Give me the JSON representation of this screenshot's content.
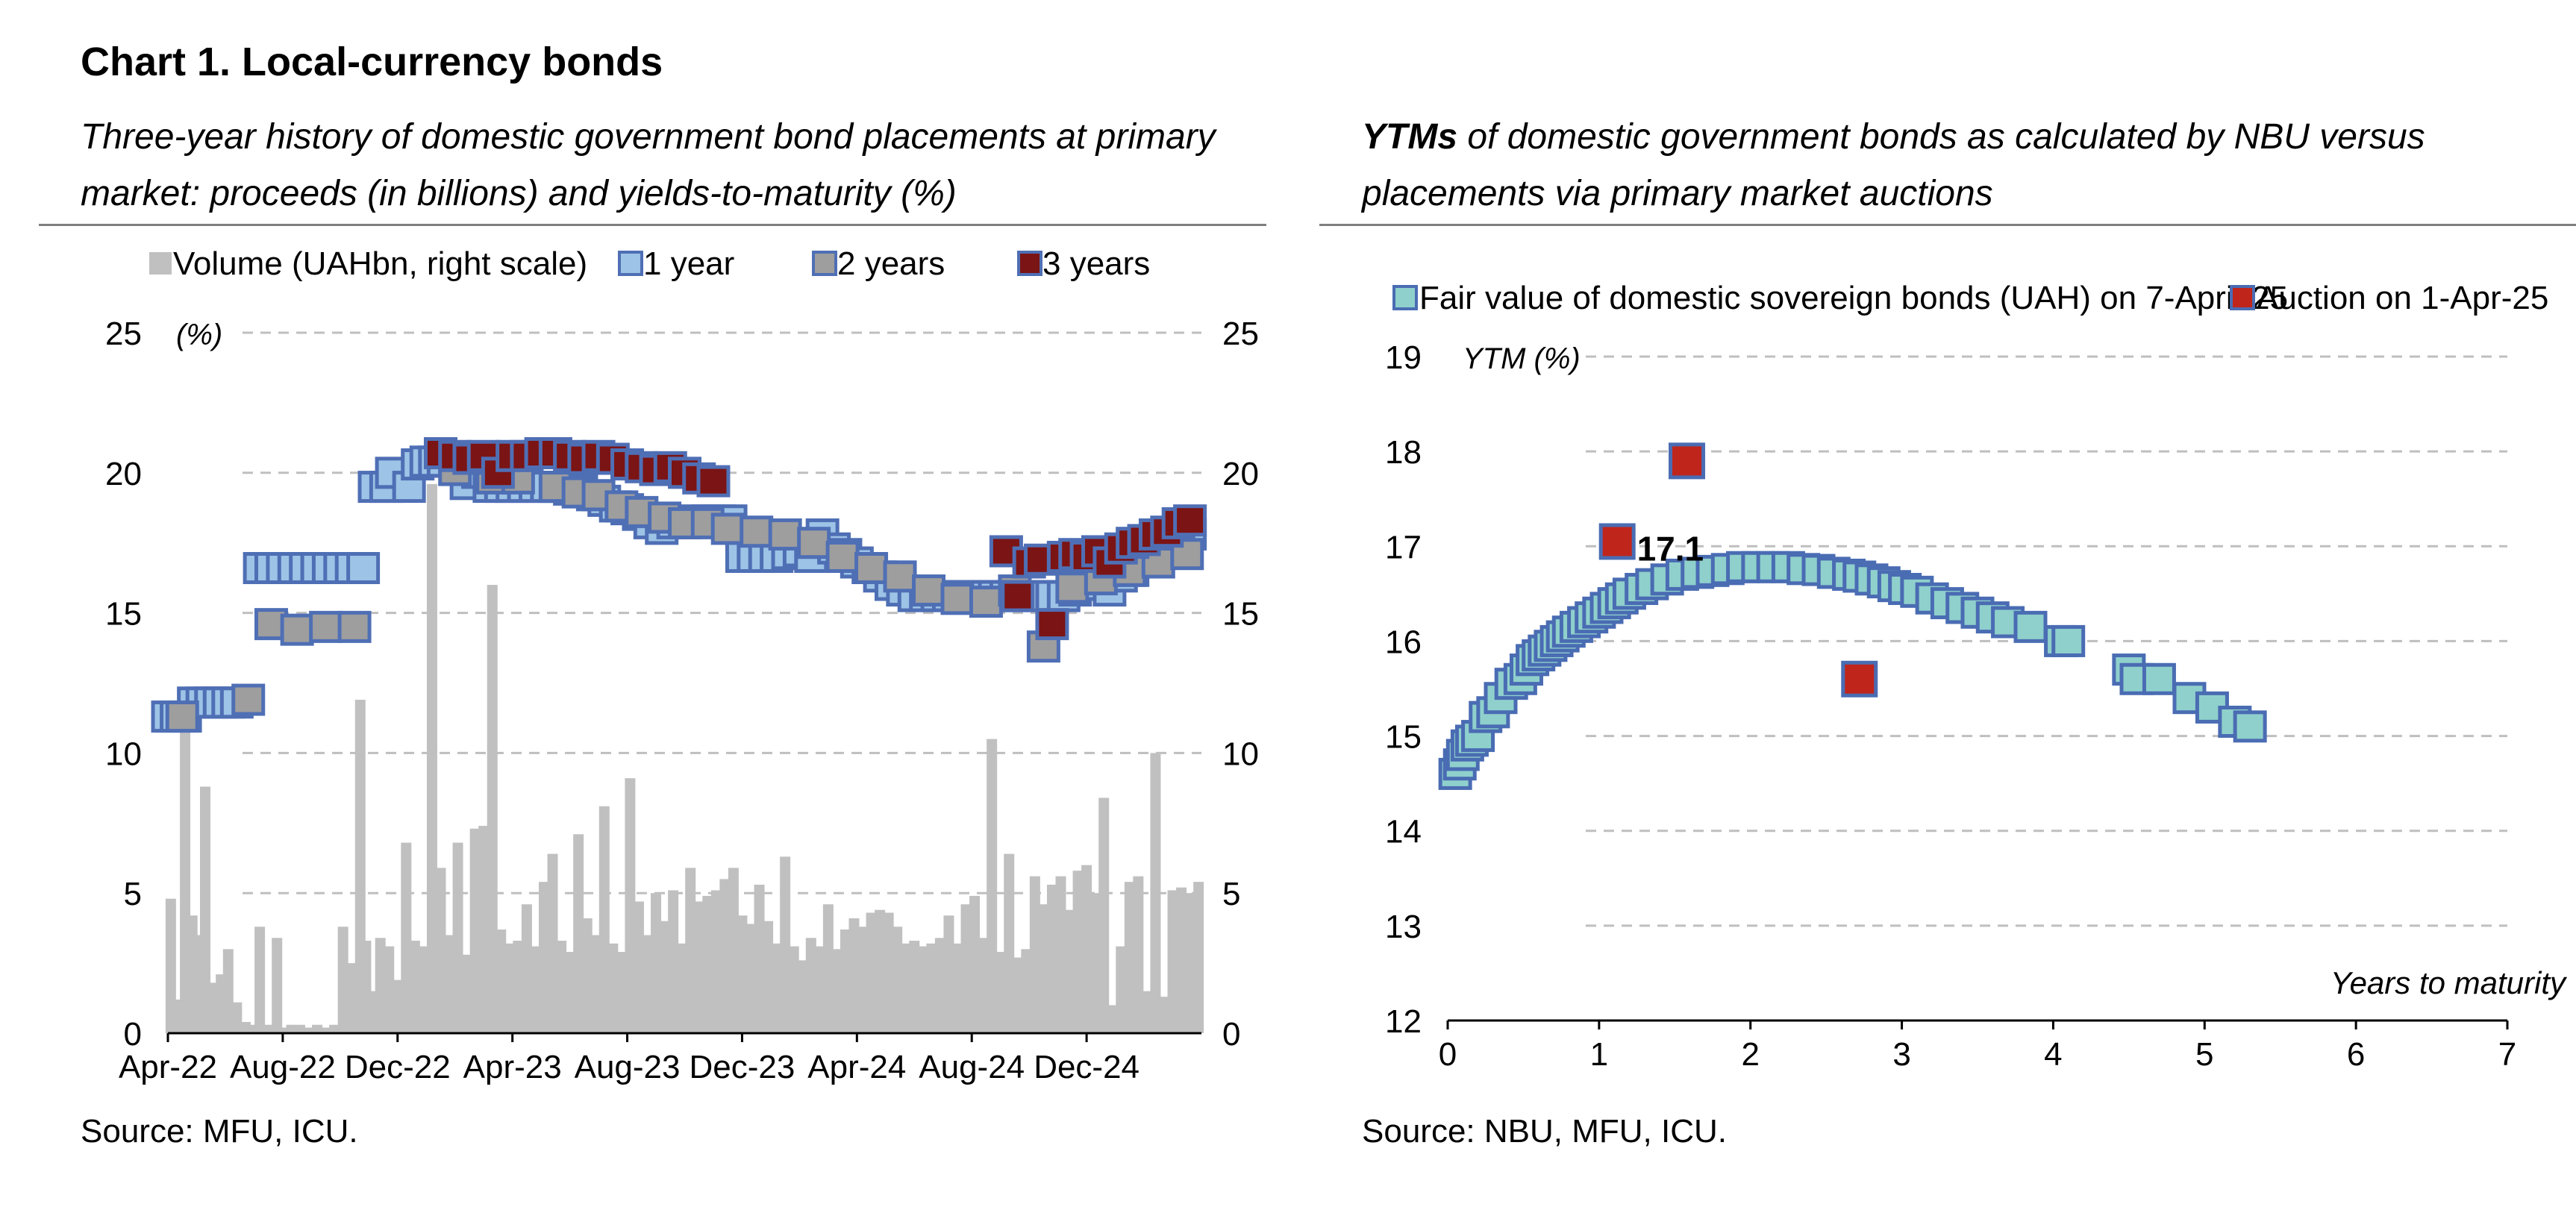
{
  "page": {
    "title": "Chart 1. Local-currency bonds",
    "left_subtitle": "Three-year history of domestic government bond placements at primary market: proceeds (in billions) and yields-to-maturity (%)",
    "right_subtitle_bold": "YTMs",
    "right_subtitle_rest": " of domestic government bonds as calculated by NBU versus placements via primary market auctions",
    "left_source": "Source: MFU, ICU.",
    "right_source": "Source: NBU, MFU, ICU."
  },
  "colors": {
    "volume_bar": "#c0c0c0",
    "one_year": "#9dc3e6",
    "one_year_border": "#4f6fb5",
    "two_years": "#9e9e9e",
    "three_years": "#7b1414",
    "fair_value": "#8fd0cc",
    "auction": "#c0251c",
    "marker_border": "#4a6cb3",
    "grid": "#bfbfbf"
  },
  "chart_data": [
    {
      "type": "bar+scatter",
      "legend": [
        "Volume (UAHbn, right scale)",
        "1 year",
        "2 years",
        "3 years"
      ],
      "legend_position": "top",
      "y_unit_label": "(%)",
      "left_axis": {
        "ylim": [
          0,
          25
        ],
        "ticks": [
          0,
          5,
          10,
          15,
          20,
          25
        ]
      },
      "right_axis": {
        "ylim": [
          0,
          25
        ],
        "ticks": [
          0,
          5,
          10,
          15,
          20,
          25
        ]
      },
      "x_tick_labels": [
        "Apr-22",
        "Aug-22",
        "Dec-22",
        "Apr-23",
        "Aug-23",
        "Dec-23",
        "Apr-24",
        "Aug-24",
        "Dec-24"
      ],
      "x_range_months": [
        0,
        36
      ],
      "grid": true,
      "volume_series": {
        "name": "Volume (UAHbn, right scale)",
        "x_months": [
          0.1,
          0.35,
          0.6,
          0.85,
          1.1,
          1.3,
          1.6,
          1.85,
          2.1,
          2.4,
          2.7,
          2.95,
          3.2,
          3.5,
          3.8,
          4.1,
          4.3,
          4.6,
          4.9,
          5.2,
          5.5,
          5.8,
          6.1,
          6.4,
          6.7,
          6.9,
          7.1,
          7.4,
          7.7,
          8.0,
          8.3,
          8.6,
          8.9,
          9.2,
          9.5,
          9.8,
          10.1,
          10.4,
          10.7,
          11.0,
          11.3,
          11.6,
          11.9,
          12.2,
          12.5,
          12.8,
          13.1,
          13.4,
          13.7,
          14.0,
          14.3,
          14.6,
          14.9,
          15.2,
          15.5,
          15.8,
          16.1,
          16.4,
          16.7,
          17.0,
          17.3,
          17.6,
          17.9,
          18.2,
          18.5,
          18.8,
          19.1,
          19.4,
          19.7,
          20.0,
          20.3,
          20.6,
          20.9,
          21.2,
          21.5,
          21.8,
          22.1,
          22.4,
          22.7,
          23.0,
          23.3,
          23.6,
          23.9,
          24.2,
          24.5,
          24.8,
          25.1,
          25.4,
          25.7,
          26.0,
          26.3,
          26.6,
          26.9,
          27.2,
          27.5,
          27.8,
          28.1,
          28.4,
          28.7,
          29.0,
          29.3,
          29.6,
          29.9,
          30.2,
          30.5,
          30.8,
          31.1,
          31.4,
          31.7,
          32.0,
          32.3,
          32.6,
          32.9,
          33.2,
          33.5,
          33.8,
          34.1,
          34.4,
          34.7,
          35.0,
          35.3,
          35.6,
          35.9
        ],
        "values": [
          4.8,
          1.2,
          10.8,
          4.2,
          3.5,
          8.8,
          1.8,
          2.1,
          3.0,
          1.1,
          0.4,
          0.3,
          3.8,
          0.3,
          3.4,
          0.2,
          0.3,
          0.3,
          0.2,
          0.3,
          0.2,
          0.3,
          3.8,
          2.5,
          11.9,
          3.3,
          1.5,
          3.4,
          3.1,
          1.9,
          6.8,
          3.3,
          3.1,
          19.6,
          5.9,
          3.5,
          6.8,
          2.8,
          7.3,
          7.4,
          16.0,
          3.7,
          3.2,
          3.3,
          4.6,
          3.1,
          5.4,
          6.4,
          3.3,
          2.9,
          7.1,
          4.1,
          3.5,
          8.1,
          3.2,
          2.9,
          9.1,
          4.7,
          3.5,
          5.0,
          4.0,
          5.1,
          3.2,
          5.9,
          4.7,
          4.9,
          5.1,
          5.5,
          5.9,
          4.2,
          3.9,
          5.3,
          4.0,
          3.2,
          6.3,
          3.1,
          2.6,
          3.4,
          3.1,
          4.6,
          3.0,
          3.7,
          4.1,
          3.8,
          4.3,
          4.4,
          4.3,
          3.8,
          3.2,
          3.3,
          3.1,
          3.2,
          3.4,
          4.2,
          3.2,
          4.6,
          4.9,
          3.4,
          10.5,
          2.9,
          6.4,
          2.7,
          3.0,
          5.6,
          4.6,
          5.3,
          5.6,
          4.4,
          5.8,
          6.0,
          5.0,
          8.4,
          1.0,
          3.1,
          5.4,
          5.6,
          1.5,
          10.0,
          1.3,
          5.1,
          5.2,
          5.0,
          5.4
        ]
      },
      "series": [
        {
          "name": "1 year",
          "x_months": [
            0,
            0.3,
            0.6,
            0.9,
            1.2,
            1.5,
            1.8,
            2.1,
            2.4,
            3.2,
            3.6,
            4.0,
            4.4,
            4.8,
            5.2,
            5.6,
            6.0,
            6.4,
            6.8,
            7.2,
            7.6,
            7.8,
            8.4,
            8.7,
            9.0,
            9.3,
            9.6,
            10.0,
            10.4,
            10.8,
            11.2,
            11.6,
            12.0,
            12.4,
            12.8,
            13.2,
            13.6,
            14.0,
            14.4,
            14.8,
            15.2,
            15.6,
            16.0,
            16.4,
            16.8,
            17.2,
            17.6,
            18.0,
            18.4,
            18.8,
            19.2,
            19.6,
            20.0,
            20.4,
            20.8,
            21.2,
            21.6,
            22.0,
            22.4,
            22.8,
            23.2,
            23.6,
            24.0,
            24.4,
            24.8,
            25.2,
            25.6,
            26.0,
            26.4,
            26.8,
            27.2,
            27.6,
            28.0,
            28.4,
            28.8,
            29.2,
            29.6,
            30.0,
            30.4,
            30.8,
            31.2,
            31.6,
            32.0,
            32.4,
            32.8,
            33.2,
            33.6,
            34.0,
            34.4,
            34.8,
            35.2,
            35.6
          ],
          "values": [
            11.3,
            11.3,
            11.3,
            11.8,
            11.8,
            11.8,
            11.8,
            11.8,
            11.8,
            16.6,
            16.6,
            16.6,
            16.6,
            16.6,
            16.6,
            16.6,
            16.6,
            16.6,
            16.6,
            19.5,
            19.5,
            20.0,
            19.5,
            20.3,
            20.4,
            20.4,
            20.4,
            20.4,
            19.6,
            20.0,
            19.5,
            19.5,
            19.5,
            19.5,
            19.5,
            19.5,
            19.5,
            19.4,
            19.4,
            19.2,
            19.0,
            18.8,
            18.7,
            18.5,
            18.2,
            18.0,
            18.2,
            18.2,
            18.3,
            18.3,
            18.3,
            18.3,
            17.0,
            17.0,
            17.0,
            17.0,
            17.1,
            17.2,
            17.0,
            17.8,
            17.3,
            17.1,
            16.8,
            16.6,
            16.3,
            16.0,
            15.8,
            15.6,
            15.6,
            15.6,
            15.6,
            15.6,
            15.6,
            15.6,
            15.6,
            15.6,
            15.6,
            15.6,
            15.6,
            15.6,
            15.6,
            15.8,
            16.0,
            16.2,
            15.8,
            16.3,
            16.5,
            16.8,
            17.0,
            17.2,
            17.5,
            17.8
          ]
        },
        {
          "name": "2 years",
          "x_months": [
            0.5,
            2.8,
            3.6,
            4.5,
            5.5,
            6.5,
            10.0,
            11.3,
            12.2,
            13.5,
            14.3,
            15.0,
            15.8,
            16.5,
            17.3,
            18.0,
            18.8,
            19.5,
            20.5,
            21.5,
            22.5,
            23.5,
            24.5,
            25.5,
            26.5,
            27.5,
            28.5,
            29.5,
            30.5,
            31.5,
            32.5,
            33.5,
            34.5,
            35.5
          ],
          "values": [
            11.3,
            11.9,
            14.6,
            14.4,
            14.5,
            14.5,
            20.1,
            19.8,
            19.8,
            19.5,
            19.3,
            19.2,
            18.8,
            18.6,
            18.4,
            18.2,
            18.2,
            18.0,
            17.9,
            17.8,
            17.5,
            17.0,
            16.6,
            16.3,
            15.8,
            15.5,
            15.4,
            15.8,
            13.8,
            15.9,
            16.2,
            16.5,
            16.8,
            17.1
          ]
        },
        {
          "name": "3 years",
          "x_months": [
            9.5,
            10.0,
            10.5,
            11.0,
            11.5,
            12.0,
            12.5,
            13.0,
            13.5,
            14.0,
            14.5,
            15.0,
            15.5,
            16.0,
            16.5,
            17.0,
            17.5,
            18.0,
            18.5,
            19.0,
            29.2,
            29.6,
            30.0,
            30.4,
            30.8,
            31.2,
            31.6,
            32.0,
            32.4,
            32.8,
            33.2,
            33.6,
            34.0,
            34.4,
            34.8,
            35.2,
            35.6
          ],
          "values": [
            20.7,
            20.6,
            20.5,
            20.6,
            20.0,
            20.6,
            20.6,
            20.7,
            20.7,
            20.6,
            20.5,
            20.6,
            20.5,
            20.3,
            20.2,
            20.1,
            20.2,
            20.0,
            19.8,
            19.7,
            17.2,
            15.6,
            16.8,
            16.9,
            14.6,
            17.0,
            17.1,
            17.0,
            17.2,
            16.8,
            17.3,
            17.5,
            17.6,
            17.8,
            17.9,
            18.2,
            18.3
          ]
        }
      ]
    },
    {
      "type": "scatter",
      "legend": [
        "Fair value of domestic sovereign bonds (UAH) on 7-April-25",
        "Auction on 1-Apr-25"
      ],
      "legend_position": "top",
      "ylabel": "YTM (%)",
      "xlabel": "Years to maturity",
      "xlim": [
        0,
        7
      ],
      "ylim": [
        12,
        19
      ],
      "x_ticks": [
        0,
        1,
        2,
        3,
        4,
        5,
        6,
        7
      ],
      "y_ticks": [
        12,
        13,
        14,
        15,
        16,
        17,
        18,
        19
      ],
      "grid": true,
      "annotation": "17.1",
      "series": [
        {
          "name": "Fair value of domestic sovereign bonds (UAH) on 7-April-25",
          "x": [
            0.05,
            0.08,
            0.1,
            0.13,
            0.16,
            0.2,
            0.25,
            0.3,
            0.35,
            0.42,
            0.48,
            0.52,
            0.56,
            0.6,
            0.64,
            0.68,
            0.72,
            0.76,
            0.8,
            0.85,
            0.9,
            0.95,
            1.0,
            1.05,
            1.1,
            1.15,
            1.2,
            1.28,
            1.35,
            1.45,
            1.55,
            1.65,
            1.75,
            1.85,
            1.95,
            2.05,
            2.15,
            2.25,
            2.35,
            2.45,
            2.55,
            2.65,
            2.72,
            2.8,
            2.88,
            2.95,
            3.02,
            3.1,
            3.2,
            3.3,
            3.4,
            3.5,
            3.6,
            3.7,
            3.85,
            4.05,
            4.1,
            4.5,
            4.55,
            4.7,
            4.9,
            5.05,
            5.2,
            5.3
          ],
          "y": [
            14.6,
            14.7,
            14.8,
            14.9,
            14.95,
            15.0,
            15.2,
            15.25,
            15.4,
            15.55,
            15.6,
            15.7,
            15.8,
            15.85,
            15.9,
            15.95,
            16.0,
            16.05,
            16.1,
            16.15,
            16.2,
            16.25,
            16.3,
            16.35,
            16.4,
            16.45,
            16.5,
            16.55,
            16.6,
            16.65,
            16.7,
            16.72,
            16.74,
            16.76,
            16.78,
            16.78,
            16.78,
            16.78,
            16.76,
            16.75,
            16.72,
            16.7,
            16.68,
            16.65,
            16.62,
            16.58,
            16.55,
            16.52,
            16.45,
            16.4,
            16.35,
            16.3,
            16.25,
            16.2,
            16.15,
            16.0,
            16.0,
            15.7,
            15.6,
            15.6,
            15.4,
            15.3,
            15.15,
            15.1
          ]
        },
        {
          "name": "Auction on 1-Apr-25",
          "x": [
            1.12,
            1.58,
            2.72
          ],
          "y": [
            17.05,
            17.9,
            15.6
          ]
        }
      ]
    }
  ]
}
